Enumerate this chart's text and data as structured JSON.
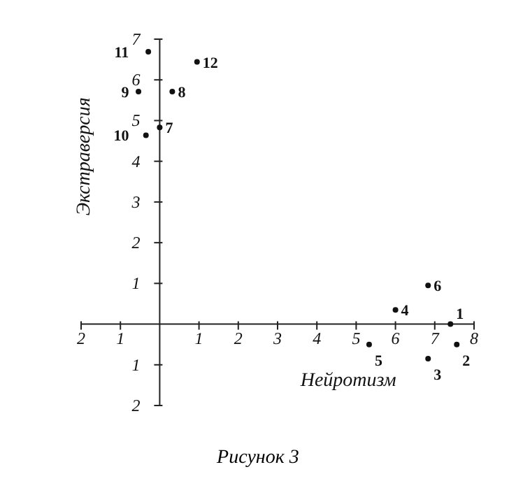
{
  "chart_data": {
    "type": "scatter",
    "xlabel": "Нейротизм",
    "ylabel": "Экстраверсия",
    "x": [
      7.4,
      7.56,
      6.83,
      6.0,
      5.33,
      6.83,
      0.0,
      0.32,
      -0.54,
      -0.35,
      -0.29,
      0.95
    ],
    "values": [
      0.0,
      -0.5,
      -0.85,
      0.35,
      -0.5,
      0.95,
      4.83,
      5.71,
      5.71,
      4.64,
      6.69,
      6.44
    ],
    "color": "#111111",
    "marker": "circle",
    "grid": false,
    "legend": false,
    "xlim": [
      -2,
      8
    ],
    "ylim": [
      -2,
      7
    ],
    "xticks": [
      {
        "value": -2,
        "label": "2"
      },
      {
        "value": -1,
        "label": "1"
      },
      1,
      2,
      3,
      4,
      5,
      6,
      7,
      8
    ],
    "yticks": [
      {
        "value": -2,
        "label": "2"
      },
      {
        "value": -1,
        "label": "1"
      },
      1,
      2,
      3,
      4,
      5,
      6,
      7
    ],
    "annotations": [
      {
        "text": "1",
        "x": 7.4,
        "y": 0.0
      },
      {
        "text": "2",
        "x": 7.56,
        "y": -0.5
      },
      {
        "text": "3",
        "x": 6.83,
        "y": -0.85
      },
      {
        "text": "4",
        "x": 6.0,
        "y": 0.35
      },
      {
        "text": "5",
        "x": 5.33,
        "y": -0.5
      },
      {
        "text": "6",
        "x": 6.83,
        "y": 0.95
      },
      {
        "text": "7",
        "x": 0.0,
        "y": 4.83
      },
      {
        "text": "8",
        "x": 0.32,
        "y": 5.71
      },
      {
        "text": "9",
        "x": -0.54,
        "y": 5.71
      },
      {
        "text": "10",
        "x": -0.35,
        "y": 4.64
      },
      {
        "text": "11",
        "x": -0.29,
        "y": 6.69
      },
      {
        "text": "12",
        "x": 0.95,
        "y": 6.44
      },
      "Рисунок 3"
    ]
  }
}
